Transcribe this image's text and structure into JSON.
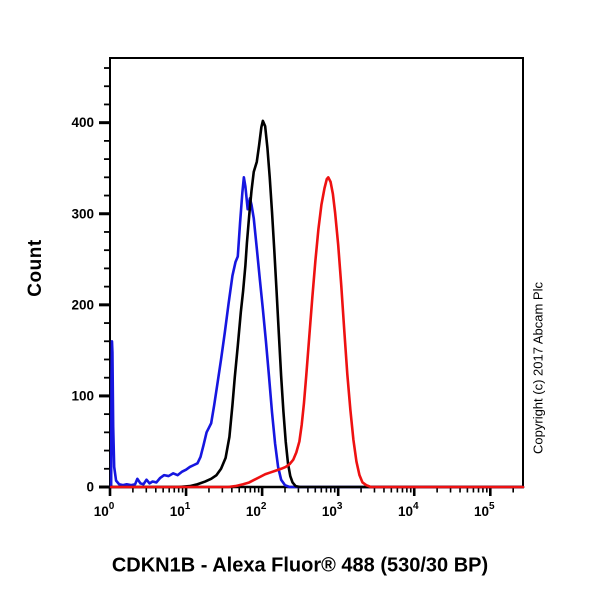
{
  "figure": {
    "title": "CDKN1B - Alexa Fluor® 488 (530/30 BP)",
    "ylabel": "Count",
    "copyright": "Copyright (c) 2017 Abcam Plc"
  },
  "chart_data": {
    "type": "line",
    "subtype": "flow-cytometry-histogram-overlay",
    "title": "CDKN1B - Alexa Fluor® 488 (530/30 BP)",
    "xlabel": "",
    "ylabel": "Count",
    "x_scale": "log10",
    "x_tick_base": "10",
    "x_major_exponents": [
      0,
      1,
      2,
      3,
      4,
      5
    ],
    "xlim_log10": [
      0,
      5.43
    ],
    "ylim": [
      0,
      471
    ],
    "y_ticks": [
      0,
      100,
      200,
      300,
      400
    ],
    "y_minor_step": 20,
    "grid": false,
    "legend": null,
    "background_color": "#ffffff",
    "axis_color": "#000000",
    "series": [
      {
        "name": "blue-histogram",
        "color": "#1616e0",
        "points_log10x_count": [
          [
            0.015,
            0
          ],
          [
            0.02,
            118
          ],
          [
            0.026,
            160
          ],
          [
            0.032,
            148
          ],
          [
            0.042,
            66
          ],
          [
            0.055,
            22
          ],
          [
            0.08,
            7
          ],
          [
            0.12,
            3
          ],
          [
            0.17,
            2
          ],
          [
            0.22,
            3
          ],
          [
            0.28,
            2
          ],
          [
            0.33,
            3
          ],
          [
            0.36,
            9
          ],
          [
            0.4,
            4
          ],
          [
            0.44,
            3
          ],
          [
            0.48,
            8
          ],
          [
            0.52,
            4
          ],
          [
            0.56,
            6
          ],
          [
            0.61,
            5
          ],
          [
            0.66,
            10
          ],
          [
            0.71,
            13
          ],
          [
            0.77,
            12
          ],
          [
            0.83,
            15
          ],
          [
            0.89,
            13
          ],
          [
            0.95,
            17
          ],
          [
            1.0,
            19
          ],
          [
            1.05,
            22
          ],
          [
            1.1,
            24
          ],
          [
            1.15,
            26
          ],
          [
            1.19,
            33
          ],
          [
            1.23,
            46
          ],
          [
            1.27,
            60
          ],
          [
            1.3,
            65
          ],
          [
            1.33,
            70
          ],
          [
            1.37,
            90
          ],
          [
            1.41,
            112
          ],
          [
            1.46,
            140
          ],
          [
            1.51,
            170
          ],
          [
            1.56,
            202
          ],
          [
            1.61,
            232
          ],
          [
            1.65,
            247
          ],
          [
            1.68,
            253
          ],
          [
            1.71,
            290
          ],
          [
            1.74,
            323
          ],
          [
            1.76,
            340
          ],
          [
            1.78,
            330
          ],
          [
            1.81,
            305
          ],
          [
            1.84,
            317
          ],
          [
            1.86,
            310
          ],
          [
            1.89,
            295
          ],
          [
            1.93,
            262
          ],
          [
            1.97,
            228
          ],
          [
            2.01,
            195
          ],
          [
            2.05,
            160
          ],
          [
            2.09,
            122
          ],
          [
            2.13,
            82
          ],
          [
            2.17,
            48
          ],
          [
            2.21,
            22
          ],
          [
            2.25,
            8
          ],
          [
            2.3,
            2
          ],
          [
            2.36,
            0
          ],
          [
            5.43,
            0
          ]
        ]
      },
      {
        "name": "black-histogram",
        "color": "#000000",
        "points_log10x_count": [
          [
            0.015,
            0
          ],
          [
            0.9,
            0
          ],
          [
            1.05,
            1
          ],
          [
            1.15,
            3
          ],
          [
            1.25,
            6
          ],
          [
            1.33,
            9
          ],
          [
            1.4,
            13
          ],
          [
            1.46,
            20
          ],
          [
            1.52,
            32
          ],
          [
            1.57,
            55
          ],
          [
            1.61,
            90
          ],
          [
            1.64,
            120
          ],
          [
            1.68,
            155
          ],
          [
            1.72,
            192
          ],
          [
            1.75,
            215
          ],
          [
            1.78,
            243
          ],
          [
            1.8,
            268
          ],
          [
            1.83,
            298
          ],
          [
            1.86,
            325
          ],
          [
            1.89,
            346
          ],
          [
            1.93,
            357
          ],
          [
            1.96,
            375
          ],
          [
            1.99,
            395
          ],
          [
            2.01,
            402
          ],
          [
            2.04,
            396
          ],
          [
            2.07,
            372
          ],
          [
            2.1,
            340
          ],
          [
            2.13,
            302
          ],
          [
            2.16,
            260
          ],
          [
            2.19,
            215
          ],
          [
            2.22,
            168
          ],
          [
            2.25,
            122
          ],
          [
            2.28,
            83
          ],
          [
            2.31,
            50
          ],
          [
            2.34,
            26
          ],
          [
            2.37,
            12
          ],
          [
            2.4,
            5
          ],
          [
            2.44,
            1
          ],
          [
            2.5,
            0
          ],
          [
            5.43,
            0
          ]
        ]
      },
      {
        "name": "red-histogram",
        "color": "#ee1111",
        "points_log10x_count": [
          [
            0.015,
            0
          ],
          [
            1.55,
            0
          ],
          [
            1.65,
            1
          ],
          [
            1.75,
            3
          ],
          [
            1.83,
            5
          ],
          [
            1.9,
            8
          ],
          [
            1.97,
            11
          ],
          [
            2.04,
            14
          ],
          [
            2.11,
            16
          ],
          [
            2.18,
            18
          ],
          [
            2.25,
            20
          ],
          [
            2.31,
            22
          ],
          [
            2.36,
            25
          ],
          [
            2.41,
            30
          ],
          [
            2.45,
            38
          ],
          [
            2.49,
            50
          ],
          [
            2.52,
            68
          ],
          [
            2.55,
            92
          ],
          [
            2.58,
            122
          ],
          [
            2.62,
            165
          ],
          [
            2.66,
            208
          ],
          [
            2.7,
            248
          ],
          [
            2.74,
            283
          ],
          [
            2.78,
            310
          ],
          [
            2.82,
            328
          ],
          [
            2.85,
            338
          ],
          [
            2.87,
            340
          ],
          [
            2.9,
            335
          ],
          [
            2.93,
            322
          ],
          [
            2.96,
            301
          ],
          [
            3.0,
            266
          ],
          [
            3.04,
            222
          ],
          [
            3.08,
            172
          ],
          [
            3.12,
            124
          ],
          [
            3.16,
            85
          ],
          [
            3.2,
            52
          ],
          [
            3.24,
            28
          ],
          [
            3.28,
            13
          ],
          [
            3.32,
            5
          ],
          [
            3.37,
            2
          ],
          [
            3.43,
            0
          ],
          [
            5.43,
            0
          ]
        ]
      }
    ]
  }
}
